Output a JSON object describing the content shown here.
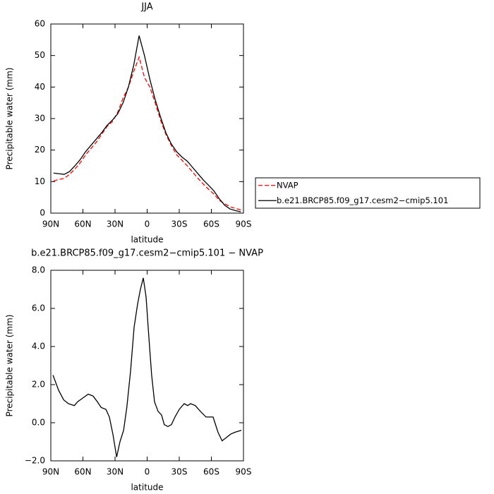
{
  "chart_data": [
    {
      "type": "line",
      "title": "JJA",
      "x_label": "latitude",
      "y_label": "Precipitable water (mm)",
      "x": [
        87.5,
        82.5,
        77.5,
        72.5,
        67.5,
        62.5,
        57.5,
        52.5,
        47.5,
        42.5,
        37.5,
        32.5,
        27.5,
        22.5,
        17.5,
        12.5,
        7.5,
        2.5,
        -2.5,
        -7.5,
        -12.5,
        -17.5,
        -22.5,
        -27.5,
        -32.5,
        -37.5,
        -42.5,
        -47.5,
        -52.5,
        -57.5,
        -62.5,
        -67.5,
        -72.5,
        -77.5,
        -82.5,
        -87.5
      ],
      "series": [
        {
          "name": "NVAP",
          "color": "#ff0000",
          "dash": true,
          "values": [
            10.2,
            10.7,
            11,
            12.3,
            14,
            16,
            18.5,
            20.5,
            22.5,
            25,
            27.5,
            29,
            32,
            36.5,
            40,
            45,
            49.5,
            43,
            40,
            35,
            29.5,
            25,
            21.5,
            18.5,
            16.8,
            15,
            13,
            11,
            9.2,
            7.5,
            6,
            4,
            3,
            2,
            1.5,
            1.0
          ]
        },
        {
          "name": "b.e21.BRCP85.f09_g17.cesm2−cmip5.101",
          "color": "#000000",
          "dash": false,
          "values": [
            12.7,
            12.5,
            12.3,
            13.2,
            15,
            17,
            19.5,
            21.5,
            23.5,
            25.5,
            27.8,
            29.5,
            31.5,
            35,
            40,
            47,
            56.3,
            50,
            42.5,
            36,
            30.5,
            25.5,
            22,
            19.5,
            17.8,
            16.5,
            14.5,
            12.5,
            10.5,
            8.8,
            7,
            4.5,
            2.5,
            1.3,
            0.8,
            0.4
          ]
        }
      ],
      "xlim": [
        90,
        -90
      ],
      "xticks": [
        {
          "value": 90,
          "label": "90N"
        },
        {
          "value": 60,
          "label": "60N"
        },
        {
          "value": 30,
          "label": "30N"
        },
        0,
        {
          "value": -30,
          "label": "30S"
        },
        {
          "value": -60,
          "label": "60S"
        },
        {
          "value": -90,
          "label": "90S"
        }
      ],
      "ylim": [
        0,
        60
      ],
      "yticks": [
        0,
        10,
        20,
        30,
        40,
        50,
        60
      ],
      "legend": "right"
    },
    {
      "type": "line",
      "title": "b.e21.BRCP85.f09_g17.cesm2−cmip5.101  −  NVAP",
      "x_label": "latitude",
      "y_label": "Precipitable water (mm)",
      "x": [
        88,
        82.7,
        78,
        73.5,
        68,
        65,
        60,
        55,
        50.5,
        46.5,
        43,
        38.5,
        35.3,
        32,
        28.5,
        25.4,
        22,
        19,
        15.5,
        12.2,
        9,
        6.3,
        3.6,
        1,
        -1.6,
        -4.2,
        -6.9,
        -10.2,
        -13.5,
        -16,
        -19.4,
        -22.7,
        -26,
        -30,
        -34.6,
        -37.9,
        -40.5,
        -45,
        -49.7,
        -55,
        -61.6,
        -66.2,
        -70,
        -73.5,
        -78,
        -82,
        -88
      ],
      "series": [
        {
          "color": "#000000",
          "dash": false,
          "values": [
            2.5,
            1.7,
            1.2,
            1.0,
            0.9,
            1.1,
            1.3,
            1.5,
            1.4,
            1.1,
            0.8,
            0.7,
            0.3,
            -0.6,
            -1.8,
            -1.0,
            -0.4,
            0.8,
            2.7,
            5.0,
            6.2,
            7.0,
            7.6,
            6.6,
            4.5,
            2.5,
            1.1,
            0.6,
            0.4,
            -0.1,
            -0.2,
            -0.1,
            0.3,
            0.7,
            1.0,
            0.9,
            1.0,
            0.9,
            0.6,
            0.3,
            0.3,
            -0.5,
            -0.95,
            -0.8,
            -0.6,
            -0.5,
            -0.4
          ]
        }
      ],
      "xlim": [
        90,
        -90
      ],
      "xticks": [
        {
          "value": 90,
          "label": "90N"
        },
        {
          "value": 60,
          "label": "60N"
        },
        {
          "value": 30,
          "label": "30N"
        },
        0,
        {
          "value": -30,
          "label": "30S"
        },
        {
          "value": -60,
          "label": "60S"
        },
        {
          "value": -90,
          "label": "90S"
        }
      ],
      "ylim": [
        -2,
        8
      ],
      "yticks": [
        {
          "value": -2,
          "label": "−2.0"
        },
        {
          "value": 0,
          "label": "0.0"
        },
        {
          "value": 2,
          "label": "2.0"
        },
        {
          "value": 4,
          "label": "4.0"
        },
        {
          "value": 6,
          "label": "6.0"
        },
        {
          "value": 8,
          "label": "8.0"
        }
      ]
    }
  ]
}
